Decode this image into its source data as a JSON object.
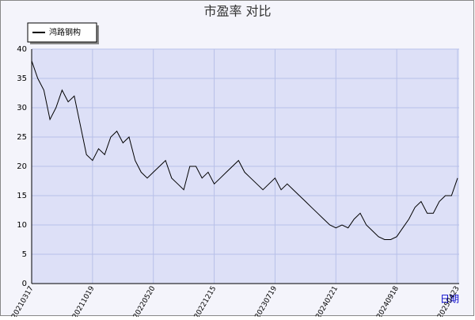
{
  "chart_data": {
    "type": "line",
    "title": "市盈率  对比",
    "xlabel": "日期",
    "categories": [
      "20210317",
      null,
      null,
      null,
      null,
      null,
      null,
      null,
      null,
      null,
      "20211019",
      null,
      null,
      null,
      null,
      null,
      null,
      null,
      null,
      null,
      "20220520",
      null,
      null,
      null,
      null,
      null,
      null,
      null,
      null,
      null,
      "20221215",
      null,
      null,
      null,
      null,
      null,
      null,
      null,
      null,
      null,
      "20230719",
      null,
      null,
      null,
      null,
      null,
      null,
      null,
      null,
      null,
      "20240221",
      null,
      null,
      null,
      null,
      null,
      null,
      null,
      null,
      null,
      "20240918",
      null,
      null,
      null,
      null,
      null,
      null,
      null,
      null,
      null,
      "20250423"
    ],
    "series": [
      {
        "name": "鸿路钢构",
        "color": "#000000",
        "values": [
          38,
          35,
          33,
          28,
          30,
          33,
          31,
          32,
          27,
          22,
          21,
          23,
          22,
          25,
          26,
          24,
          25,
          21,
          19,
          18,
          19,
          20,
          21,
          18,
          17,
          16,
          20,
          20,
          18,
          19,
          17,
          18,
          19,
          20,
          21,
          19,
          18,
          17,
          16,
          17,
          18,
          16,
          17,
          16,
          15,
          14,
          13,
          12,
          11,
          10,
          9.5,
          10,
          9.5,
          11,
          12,
          10,
          9,
          8,
          7.5,
          7.5,
          8,
          9.5,
          11,
          13,
          14,
          12,
          12,
          14,
          15,
          15,
          18
        ]
      }
    ],
    "ylim": [
      0,
      40
    ],
    "yticks": [
      0,
      5,
      10,
      15,
      20,
      25,
      30,
      35,
      40
    ],
    "grid": true
  }
}
